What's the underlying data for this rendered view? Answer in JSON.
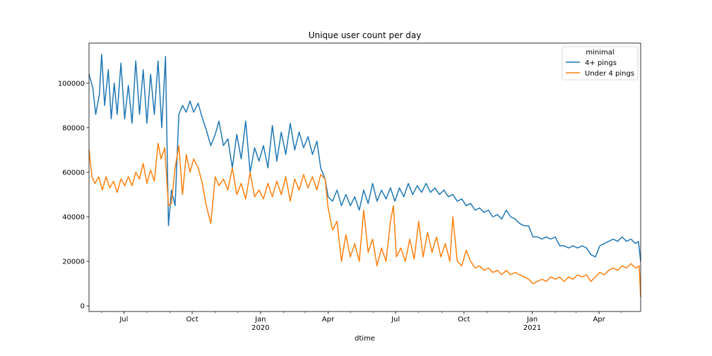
{
  "chart_data": {
    "type": "line",
    "title": "Unique user count per day",
    "xlabel": "dtime",
    "ylabel": "",
    "xlim": [
      "2019-05-15",
      "2021-05-27"
    ],
    "ylim": [
      -2500,
      118000
    ],
    "grid": false,
    "legend": {
      "title": "minimal",
      "placement": "top-right"
    },
    "x_ticks": [
      {
        "date": "2019-07-01",
        "label": "Jul",
        "year_label": ""
      },
      {
        "date": "2019-10-01",
        "label": "Oct",
        "year_label": ""
      },
      {
        "date": "2020-01-01",
        "label": "Jan",
        "year_label": "2020"
      },
      {
        "date": "2020-04-01",
        "label": "Apr",
        "year_label": ""
      },
      {
        "date": "2020-07-01",
        "label": "Jul",
        "year_label": ""
      },
      {
        "date": "2020-10-01",
        "label": "Oct",
        "year_label": ""
      },
      {
        "date": "2021-01-01",
        "label": "Jan",
        "year_label": "2021"
      },
      {
        "date": "2021-04-01",
        "label": "Apr",
        "year_label": ""
      }
    ],
    "y_ticks": [
      0,
      20000,
      40000,
      60000,
      80000,
      100000
    ],
    "series": [
      {
        "name": "4+ pings",
        "color": "#1f77b4",
        "points": [
          [
            "2019-05-15",
            104000
          ],
          [
            "2019-05-20",
            98000
          ],
          [
            "2019-05-24",
            86000
          ],
          [
            "2019-05-29",
            95000
          ],
          [
            "2019-06-01",
            113000
          ],
          [
            "2019-06-05",
            90000
          ],
          [
            "2019-06-10",
            106000
          ],
          [
            "2019-06-14",
            84000
          ],
          [
            "2019-06-18",
            100000
          ],
          [
            "2019-06-22",
            86000
          ],
          [
            "2019-06-27",
            109000
          ],
          [
            "2019-07-02",
            84000
          ],
          [
            "2019-07-07",
            99000
          ],
          [
            "2019-07-12",
            82000
          ],
          [
            "2019-07-17",
            110000
          ],
          [
            "2019-07-22",
            86000
          ],
          [
            "2019-07-27",
            106000
          ],
          [
            "2019-08-01",
            82000
          ],
          [
            "2019-08-06",
            104000
          ],
          [
            "2019-08-11",
            86000
          ],
          [
            "2019-08-16",
            110000
          ],
          [
            "2019-08-21",
            80000
          ],
          [
            "2019-08-26",
            112000
          ],
          [
            "2019-08-30",
            36000
          ],
          [
            "2019-09-03",
            52000
          ],
          [
            "2019-09-08",
            45000
          ],
          [
            "2019-09-13",
            86000
          ],
          [
            "2019-09-18",
            90000
          ],
          [
            "2019-09-23",
            87000
          ],
          [
            "2019-09-28",
            92000
          ],
          [
            "2019-10-03",
            87000
          ],
          [
            "2019-10-09",
            91000
          ],
          [
            "2019-10-14",
            85000
          ],
          [
            "2019-10-20",
            79000
          ],
          [
            "2019-10-26",
            72000
          ],
          [
            "2019-11-01",
            77000
          ],
          [
            "2019-11-06",
            83000
          ],
          [
            "2019-11-12",
            72000
          ],
          [
            "2019-11-18",
            75000
          ],
          [
            "2019-11-24",
            62000
          ],
          [
            "2019-11-30",
            77000
          ],
          [
            "2019-12-06",
            66000
          ],
          [
            "2019-12-12",
            83000
          ],
          [
            "2019-12-18",
            60000
          ],
          [
            "2019-12-24",
            71000
          ],
          [
            "2019-12-30",
            65000
          ],
          [
            "2020-01-05",
            72000
          ],
          [
            "2020-01-11",
            62000
          ],
          [
            "2020-01-17",
            81000
          ],
          [
            "2020-01-23",
            65000
          ],
          [
            "2020-01-29",
            78000
          ],
          [
            "2020-02-04",
            68000
          ],
          [
            "2020-02-10",
            82000
          ],
          [
            "2020-02-16",
            70000
          ],
          [
            "2020-02-22",
            78000
          ],
          [
            "2020-02-28",
            71000
          ],
          [
            "2020-03-05",
            76000
          ],
          [
            "2020-03-11",
            68000
          ],
          [
            "2020-03-17",
            74000
          ],
          [
            "2020-03-22",
            62000
          ],
          [
            "2020-03-28",
            57000
          ],
          [
            "2020-04-01",
            49000
          ],
          [
            "2020-04-07",
            47000
          ],
          [
            "2020-04-13",
            52000
          ],
          [
            "2020-04-19",
            45000
          ],
          [
            "2020-04-25",
            50000
          ],
          [
            "2020-05-01",
            45000
          ],
          [
            "2020-05-07",
            49000
          ],
          [
            "2020-05-13",
            43000
          ],
          [
            "2020-05-19",
            52000
          ],
          [
            "2020-05-25",
            46000
          ],
          [
            "2020-05-31",
            55000
          ],
          [
            "2020-06-06",
            47000
          ],
          [
            "2020-06-12",
            52000
          ],
          [
            "2020-06-18",
            48000
          ],
          [
            "2020-06-24",
            53000
          ],
          [
            "2020-06-30",
            47000
          ],
          [
            "2020-07-06",
            53000
          ],
          [
            "2020-07-12",
            49000
          ],
          [
            "2020-07-18",
            55000
          ],
          [
            "2020-07-24",
            50000
          ],
          [
            "2020-07-30",
            54000
          ],
          [
            "2020-08-05",
            51000
          ],
          [
            "2020-08-11",
            55000
          ],
          [
            "2020-08-17",
            51000
          ],
          [
            "2020-08-23",
            53000
          ],
          [
            "2020-08-29",
            50000
          ],
          [
            "2020-09-04",
            52000
          ],
          [
            "2020-09-10",
            49000
          ],
          [
            "2020-09-16",
            50000
          ],
          [
            "2020-09-22",
            47000
          ],
          [
            "2020-09-28",
            48000
          ],
          [
            "2020-10-04",
            45000
          ],
          [
            "2020-10-10",
            46000
          ],
          [
            "2020-10-16",
            43000
          ],
          [
            "2020-10-22",
            44000
          ],
          [
            "2020-10-28",
            42000
          ],
          [
            "2020-11-03",
            43000
          ],
          [
            "2020-11-09",
            40000
          ],
          [
            "2020-11-15",
            41000
          ],
          [
            "2020-11-21",
            39000
          ],
          [
            "2020-11-27",
            43000
          ],
          [
            "2020-12-03",
            40000
          ],
          [
            "2020-12-09",
            39000
          ],
          [
            "2020-12-15",
            37000
          ],
          [
            "2020-12-21",
            36000
          ],
          [
            "2020-12-27",
            36000
          ],
          [
            "2021-01-02",
            31000
          ],
          [
            "2021-01-08",
            31000
          ],
          [
            "2021-01-14",
            30000
          ],
          [
            "2021-01-20",
            31000
          ],
          [
            "2021-01-26",
            30000
          ],
          [
            "2021-02-01",
            31000
          ],
          [
            "2021-02-07",
            27000
          ],
          [
            "2021-02-13",
            27000
          ],
          [
            "2021-02-19",
            26000
          ],
          [
            "2021-02-25",
            27000
          ],
          [
            "2021-03-03",
            26000
          ],
          [
            "2021-03-09",
            27000
          ],
          [
            "2021-03-15",
            26000
          ],
          [
            "2021-03-21",
            23000
          ],
          [
            "2021-03-27",
            22000
          ],
          [
            "2021-04-02",
            27000
          ],
          [
            "2021-04-08",
            28000
          ],
          [
            "2021-04-14",
            29000
          ],
          [
            "2021-04-20",
            30000
          ],
          [
            "2021-04-26",
            29000
          ],
          [
            "2021-05-02",
            31000
          ],
          [
            "2021-05-08",
            29000
          ],
          [
            "2021-05-14",
            30000
          ],
          [
            "2021-05-20",
            28000
          ],
          [
            "2021-05-24",
            29000
          ],
          [
            "2021-05-27",
            20000
          ]
        ]
      },
      {
        "name": "Under 4 pings",
        "color": "#ff7f0e",
        "points": [
          [
            "2019-05-15",
            70000
          ],
          [
            "2019-05-19",
            58000
          ],
          [
            "2019-05-23",
            55000
          ],
          [
            "2019-05-28",
            58000
          ],
          [
            "2019-06-02",
            52000
          ],
          [
            "2019-06-07",
            58000
          ],
          [
            "2019-06-12",
            53000
          ],
          [
            "2019-06-17",
            56000
          ],
          [
            "2019-06-22",
            51000
          ],
          [
            "2019-06-27",
            57000
          ],
          [
            "2019-07-02",
            54000
          ],
          [
            "2019-07-07",
            58000
          ],
          [
            "2019-07-12",
            54000
          ],
          [
            "2019-07-17",
            60000
          ],
          [
            "2019-07-22",
            57000
          ],
          [
            "2019-07-27",
            64000
          ],
          [
            "2019-08-01",
            55000
          ],
          [
            "2019-08-06",
            61000
          ],
          [
            "2019-08-11",
            56000
          ],
          [
            "2019-08-16",
            73000
          ],
          [
            "2019-08-20",
            66000
          ],
          [
            "2019-08-25",
            71000
          ],
          [
            "2019-08-30",
            45000
          ],
          [
            "2019-09-03",
            46000
          ],
          [
            "2019-09-08",
            62000
          ],
          [
            "2019-09-13",
            72000
          ],
          [
            "2019-09-18",
            50000
          ],
          [
            "2019-09-23",
            68000
          ],
          [
            "2019-09-28",
            60000
          ],
          [
            "2019-10-03",
            66000
          ],
          [
            "2019-10-09",
            62000
          ],
          [
            "2019-10-14",
            56000
          ],
          [
            "2019-10-20",
            45000
          ],
          [
            "2019-10-26",
            37000
          ],
          [
            "2019-11-01",
            58000
          ],
          [
            "2019-11-06",
            54000
          ],
          [
            "2019-11-12",
            57000
          ],
          [
            "2019-11-18",
            52000
          ],
          [
            "2019-11-24",
            62000
          ],
          [
            "2019-11-30",
            50000
          ],
          [
            "2019-12-06",
            55000
          ],
          [
            "2019-12-12",
            48000
          ],
          [
            "2019-12-18",
            60000
          ],
          [
            "2019-12-24",
            49000
          ],
          [
            "2019-12-30",
            52000
          ],
          [
            "2020-01-05",
            48000
          ],
          [
            "2020-01-11",
            55000
          ],
          [
            "2020-01-17",
            49000
          ],
          [
            "2020-01-23",
            56000
          ],
          [
            "2020-01-29",
            50000
          ],
          [
            "2020-02-04",
            58000
          ],
          [
            "2020-02-10",
            47000
          ],
          [
            "2020-02-16",
            57000
          ],
          [
            "2020-02-22",
            52000
          ],
          [
            "2020-02-28",
            59000
          ],
          [
            "2020-03-05",
            53000
          ],
          [
            "2020-03-11",
            58000
          ],
          [
            "2020-03-17",
            52000
          ],
          [
            "2020-03-22",
            59000
          ],
          [
            "2020-03-28",
            57000
          ],
          [
            "2020-04-01",
            44000
          ],
          [
            "2020-04-07",
            34000
          ],
          [
            "2020-04-13",
            38000
          ],
          [
            "2020-04-19",
            20000
          ],
          [
            "2020-04-25",
            32000
          ],
          [
            "2020-05-01",
            22000
          ],
          [
            "2020-05-07",
            28000
          ],
          [
            "2020-05-13",
            20000
          ],
          [
            "2020-05-19",
            43000
          ],
          [
            "2020-05-25",
            24000
          ],
          [
            "2020-05-31",
            30000
          ],
          [
            "2020-06-06",
            18000
          ],
          [
            "2020-06-12",
            26000
          ],
          [
            "2020-06-18",
            20000
          ],
          [
            "2020-06-24",
            38000
          ],
          [
            "2020-06-28",
            45000
          ],
          [
            "2020-07-02",
            22000
          ],
          [
            "2020-07-08",
            26000
          ],
          [
            "2020-07-14",
            20000
          ],
          [
            "2020-07-20",
            30000
          ],
          [
            "2020-07-26",
            21000
          ],
          [
            "2020-08-01",
            38000
          ],
          [
            "2020-08-07",
            22000
          ],
          [
            "2020-08-13",
            33000
          ],
          [
            "2020-08-19",
            24000
          ],
          [
            "2020-08-25",
            31000
          ],
          [
            "2020-08-31",
            22000
          ],
          [
            "2020-09-06",
            28000
          ],
          [
            "2020-09-12",
            20000
          ],
          [
            "2020-09-16",
            40000
          ],
          [
            "2020-09-22",
            20000
          ],
          [
            "2020-09-28",
            18000
          ],
          [
            "2020-10-04",
            25000
          ],
          [
            "2020-10-10",
            20000
          ],
          [
            "2020-10-16",
            17000
          ],
          [
            "2020-10-22",
            18000
          ],
          [
            "2020-10-28",
            16000
          ],
          [
            "2020-11-03",
            17000
          ],
          [
            "2020-11-09",
            15000
          ],
          [
            "2020-11-15",
            16000
          ],
          [
            "2020-11-21",
            14000
          ],
          [
            "2020-11-27",
            16000
          ],
          [
            "2020-12-03",
            14000
          ],
          [
            "2020-12-09",
            15000
          ],
          [
            "2020-12-15",
            14000
          ],
          [
            "2020-12-21",
            13000
          ],
          [
            "2020-12-27",
            12000
          ],
          [
            "2021-01-02",
            10000
          ],
          [
            "2021-01-08",
            11000
          ],
          [
            "2021-01-14",
            12000
          ],
          [
            "2021-01-20",
            11000
          ],
          [
            "2021-01-26",
            13000
          ],
          [
            "2021-02-01",
            12000
          ],
          [
            "2021-02-07",
            13000
          ],
          [
            "2021-02-13",
            11000
          ],
          [
            "2021-02-19",
            13000
          ],
          [
            "2021-02-25",
            12000
          ],
          [
            "2021-03-03",
            14000
          ],
          [
            "2021-03-09",
            13000
          ],
          [
            "2021-03-15",
            14000
          ],
          [
            "2021-03-21",
            11000
          ],
          [
            "2021-03-27",
            13000
          ],
          [
            "2021-04-02",
            15000
          ],
          [
            "2021-04-08",
            14000
          ],
          [
            "2021-04-14",
            16000
          ],
          [
            "2021-04-20",
            17000
          ],
          [
            "2021-04-26",
            16000
          ],
          [
            "2021-05-02",
            18000
          ],
          [
            "2021-05-08",
            17000
          ],
          [
            "2021-05-14",
            19000
          ],
          [
            "2021-05-20",
            17000
          ],
          [
            "2021-05-25",
            18000
          ],
          [
            "2021-05-27",
            4000
          ]
        ]
      }
    ]
  }
}
